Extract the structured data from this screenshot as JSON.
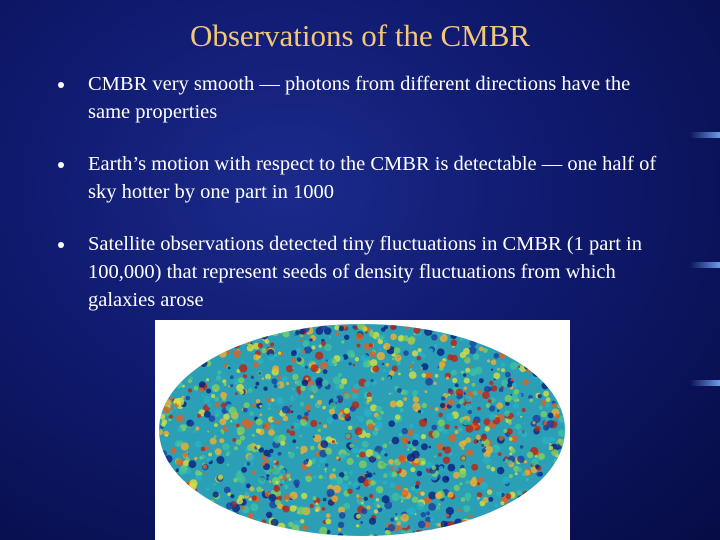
{
  "slide": {
    "title": "Observations of the CMBR",
    "bullets": [
      "CMBR very smooth — photons from different directions have the same properties",
      "Earth’s motion with respect to the CMBR is detectable — one half of sky hotter by one part in 1000",
      "Satellite observations detected tiny fluctuations in CMBR (1 part in 100,000) that represent seeds of density fluctuations from which galaxies arose"
    ]
  }
}
